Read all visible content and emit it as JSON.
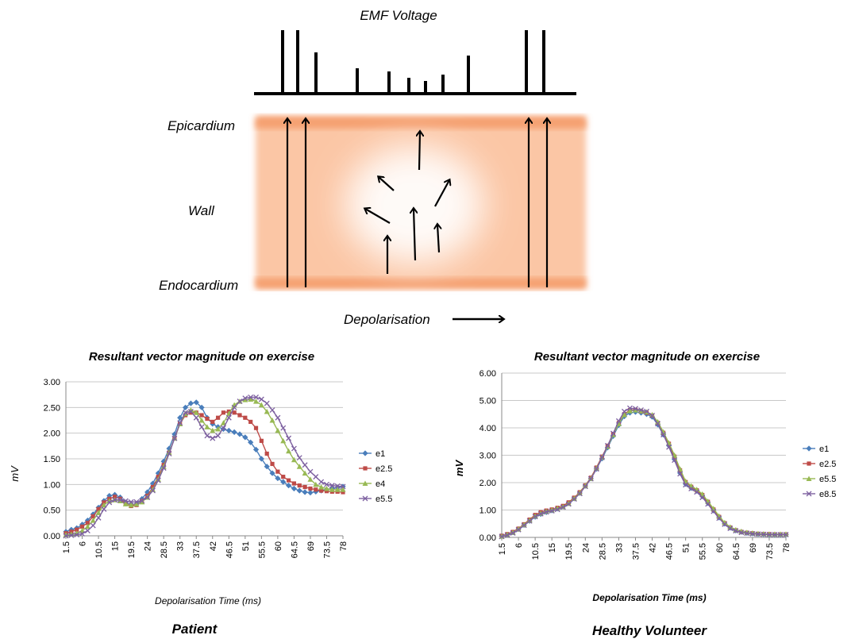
{
  "diagram": {
    "emf_label": "EMF Voltage",
    "epicardium_label": "Epicardium",
    "wall_label": "Wall",
    "endocardium_label": "Endocardium",
    "depolarisation_label": "Depolarisation",
    "fill_color": "#fbc6a5",
    "edge_color": "#f5a071",
    "spike_heights": [
      1.0,
      1.0,
      0.65,
      0.4,
      0.35,
      0.25,
      0.2,
      0.3,
      0.6,
      1.0,
      1.0
    ]
  },
  "captions": {
    "left": "Patient",
    "right": "Healthy Volunteer"
  },
  "chart_data": [
    {
      "type": "line",
      "title": "Resultant vector magnitude on exercise",
      "xlabel": "Depolarisation Time (ms)",
      "ylabel": "mV",
      "ylim": [
        0,
        3
      ],
      "yticks": [
        "0.00",
        "0.50",
        "1.00",
        "1.50",
        "2.00",
        "2.50",
        "3.00"
      ],
      "xticks": [
        "1.5",
        "6",
        "10.5",
        "15",
        "19.5",
        "24",
        "28.5",
        "33",
        "37.5",
        "42",
        "46.5",
        "51",
        "55.5",
        "60",
        "64.5",
        "69",
        "73.5",
        "78"
      ],
      "grid": true,
      "legend_position": "right",
      "x_start": 1.5,
      "x_step": 1.5,
      "series": [
        {
          "name": "e1",
          "color": "#4a7ebb",
          "marker": "diamond",
          "values": [
            0.08,
            0.12,
            0.15,
            0.22,
            0.3,
            0.42,
            0.55,
            0.68,
            0.78,
            0.8,
            0.75,
            0.65,
            0.6,
            0.62,
            0.72,
            0.85,
            1.02,
            1.22,
            1.45,
            1.7,
            1.98,
            2.3,
            2.5,
            2.58,
            2.6,
            2.5,
            2.3,
            2.18,
            2.12,
            2.08,
            2.05,
            2.02,
            1.98,
            1.92,
            1.82,
            1.68,
            1.5,
            1.35,
            1.22,
            1.12,
            1.05,
            0.98,
            0.92,
            0.88,
            0.85,
            0.84,
            0.86,
            0.88,
            0.9,
            0.92,
            0.94,
            0.96
          ]
        },
        {
          "name": "e2.5",
          "color": "#be4b48",
          "marker": "square",
          "values": [
            0.05,
            0.08,
            0.12,
            0.18,
            0.25,
            0.38,
            0.52,
            0.65,
            0.72,
            0.76,
            0.72,
            0.62,
            0.58,
            0.6,
            0.68,
            0.78,
            0.95,
            1.15,
            1.38,
            1.62,
            1.9,
            2.18,
            2.35,
            2.4,
            2.4,
            2.35,
            2.28,
            2.22,
            2.3,
            2.4,
            2.42,
            2.4,
            2.35,
            2.3,
            2.22,
            2.1,
            1.85,
            1.6,
            1.4,
            1.25,
            1.15,
            1.08,
            1.02,
            0.98,
            0.95,
            0.92,
            0.9,
            0.88,
            0.87,
            0.86,
            0.86,
            0.85
          ]
        },
        {
          "name": "e4",
          "color": "#98b954",
          "marker": "triangle",
          "values": [
            0.02,
            0.03,
            0.05,
            0.1,
            0.18,
            0.3,
            0.45,
            0.6,
            0.68,
            0.7,
            0.68,
            0.62,
            0.6,
            0.62,
            0.66,
            0.75,
            0.9,
            1.1,
            1.35,
            1.62,
            1.9,
            2.18,
            2.38,
            2.45,
            2.4,
            2.25,
            2.12,
            2.05,
            2.08,
            2.2,
            2.38,
            2.55,
            2.62,
            2.65,
            2.66,
            2.62,
            2.55,
            2.42,
            2.25,
            2.05,
            1.85,
            1.65,
            1.48,
            1.35,
            1.22,
            1.1,
            1.0,
            0.95,
            0.92,
            0.9,
            0.9,
            0.9
          ]
        },
        {
          "name": "e5.5",
          "color": "#7d60a0",
          "marker": "x",
          "values": [
            0.0,
            0.01,
            0.02,
            0.04,
            0.1,
            0.2,
            0.35,
            0.52,
            0.65,
            0.7,
            0.7,
            0.68,
            0.66,
            0.66,
            0.68,
            0.75,
            0.88,
            1.08,
            1.32,
            1.6,
            1.9,
            2.2,
            2.4,
            2.42,
            2.3,
            2.12,
            1.95,
            1.9,
            1.95,
            2.1,
            2.3,
            2.5,
            2.62,
            2.68,
            2.7,
            2.7,
            2.66,
            2.58,
            2.45,
            2.3,
            2.1,
            1.9,
            1.7,
            1.52,
            1.38,
            1.25,
            1.15,
            1.05,
            1.0,
            0.98,
            0.97,
            0.96
          ]
        }
      ]
    },
    {
      "type": "line",
      "title": "Resultant vector magnitude on exercise",
      "xlabel": "Depolarisation Time (ms)",
      "ylabel": "mV",
      "ylim": [
        0,
        6
      ],
      "yticks": [
        "0.00",
        "1.00",
        "2.00",
        "3.00",
        "4.00",
        "5.00",
        "6.00"
      ],
      "xticks": [
        "1.5",
        "6",
        "10.5",
        "15",
        "19.5",
        "24",
        "28.5",
        "33",
        "37.5",
        "42",
        "46.5",
        "51",
        "55.5",
        "60",
        "64.5",
        "69",
        "73.5",
        "78"
      ],
      "grid": true,
      "legend_position": "right",
      "x_start": 1.5,
      "x_step": 1.5,
      "series": [
        {
          "name": "e1",
          "color": "#4a7ebb",
          "marker": "diamond",
          "values": [
            0.05,
            0.1,
            0.18,
            0.3,
            0.45,
            0.6,
            0.75,
            0.85,
            0.92,
            0.98,
            1.05,
            1.12,
            1.25,
            1.42,
            1.62,
            1.88,
            2.15,
            2.5,
            2.88,
            3.28,
            3.7,
            4.1,
            4.42,
            4.55,
            4.58,
            4.55,
            4.5,
            4.4,
            4.12,
            3.75,
            3.35,
            2.85,
            2.35,
            1.95,
            1.8,
            1.7,
            1.5,
            1.25,
            0.98,
            0.72,
            0.5,
            0.35,
            0.25,
            0.2,
            0.16,
            0.14,
            0.12,
            0.11,
            0.1,
            0.1,
            0.1,
            0.1
          ]
        },
        {
          "name": "e2.5",
          "color": "#be4b48",
          "marker": "square",
          "values": [
            0.06,
            0.12,
            0.2,
            0.32,
            0.48,
            0.65,
            0.82,
            0.92,
            0.98,
            1.02,
            1.08,
            1.15,
            1.28,
            1.45,
            1.65,
            1.9,
            2.18,
            2.55,
            2.95,
            3.35,
            3.78,
            4.18,
            4.5,
            4.65,
            4.66,
            4.6,
            4.55,
            4.45,
            4.18,
            3.82,
            3.42,
            2.95,
            2.45,
            2.02,
            1.85,
            1.72,
            1.55,
            1.3,
            1.02,
            0.75,
            0.52,
            0.36,
            0.26,
            0.2,
            0.17,
            0.15,
            0.13,
            0.12,
            0.12,
            0.11,
            0.11,
            0.11
          ]
        },
        {
          "name": "e5.5",
          "color": "#98b954",
          "marker": "triangle",
          "values": [
            0.04,
            0.1,
            0.18,
            0.3,
            0.46,
            0.62,
            0.78,
            0.88,
            0.95,
            1.0,
            1.06,
            1.12,
            1.24,
            1.42,
            1.62,
            1.88,
            2.15,
            2.52,
            2.92,
            3.32,
            3.75,
            4.15,
            4.48,
            4.62,
            4.65,
            4.62,
            4.58,
            4.48,
            4.22,
            3.85,
            3.45,
            3.0,
            2.5,
            2.05,
            1.88,
            1.75,
            1.58,
            1.32,
            1.05,
            0.78,
            0.54,
            0.38,
            0.28,
            0.22,
            0.18,
            0.16,
            0.14,
            0.13,
            0.12,
            0.12,
            0.12,
            0.12
          ]
        },
        {
          "name": "e8.5",
          "color": "#7d60a0",
          "marker": "x",
          "values": [
            0.03,
            0.08,
            0.16,
            0.28,
            0.44,
            0.6,
            0.76,
            0.86,
            0.93,
            0.97,
            1.02,
            1.1,
            1.22,
            1.4,
            1.6,
            1.86,
            2.14,
            2.5,
            2.92,
            3.35,
            3.8,
            4.25,
            4.6,
            4.72,
            4.7,
            4.65,
            4.6,
            4.45,
            4.15,
            3.75,
            3.3,
            2.82,
            2.32,
            1.92,
            1.78,
            1.66,
            1.46,
            1.22,
            0.95,
            0.7,
            0.48,
            0.33,
            0.24,
            0.18,
            0.15,
            0.13,
            0.12,
            0.11,
            0.1,
            0.1,
            0.1,
            0.1
          ]
        }
      ]
    }
  ]
}
